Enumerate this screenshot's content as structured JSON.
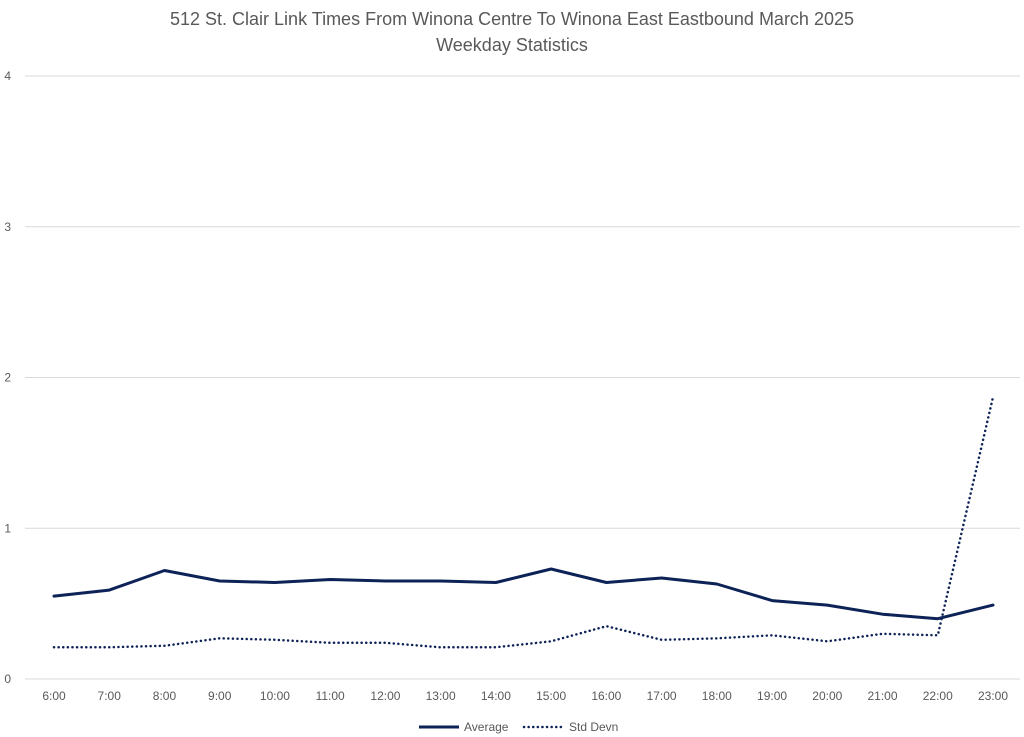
{
  "chart_data": {
    "type": "line",
    "title": "512 St. Clair Link Times From Winona Centre To Winona East Eastbound March 2025",
    "subtitle": "Weekday Statistics",
    "xlabel": "",
    "ylabel": "",
    "categories": [
      "6:00",
      "7:00",
      "8:00",
      "9:00",
      "10:00",
      "11:00",
      "12:00",
      "13:00",
      "14:00",
      "15:00",
      "16:00",
      "17:00",
      "18:00",
      "19:00",
      "20:00",
      "21:00",
      "22:00",
      "23:00"
    ],
    "ylim": [
      0,
      4
    ],
    "yticks": [
      "0",
      "1",
      "2",
      "3",
      "4"
    ],
    "grid": true,
    "legend_position": "bottom",
    "series": [
      {
        "name": "Average",
        "style": "solid",
        "color": "#0d2257",
        "values": [
          0.55,
          0.59,
          0.72,
          0.65,
          0.64,
          0.66,
          0.65,
          0.65,
          0.64,
          0.73,
          0.64,
          0.67,
          0.63,
          0.52,
          0.49,
          0.43,
          0.4,
          0.49
        ]
      },
      {
        "name": "Std Devn",
        "style": "dotted",
        "color": "#0d2257",
        "values": [
          0.21,
          0.21,
          0.22,
          0.27,
          0.26,
          0.24,
          0.24,
          0.21,
          0.21,
          0.25,
          0.35,
          0.26,
          0.27,
          0.29,
          0.25,
          0.3,
          0.29,
          1.87
        ]
      }
    ]
  },
  "colors": {
    "gridline": "#d9d9d9",
    "axis_text": "#595959",
    "title_text": "#595959"
  }
}
